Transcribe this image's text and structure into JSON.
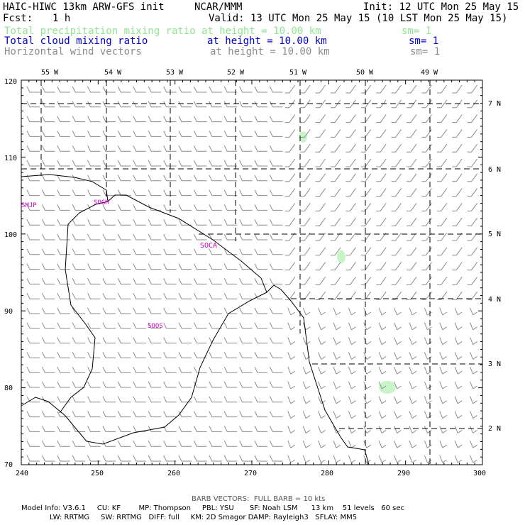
{
  "header": {
    "title": "HAIC-HIWC 13km ARW-GFS init",
    "org": "NCAR/MMM",
    "init": "Init: 12 UTC Mon 25 May 15",
    "fcst_label": "Fcst:",
    "fcst_value": "1 h",
    "valid": "Valid: 13 UTC Mon 25 May 15 (10 LST Mon 25 May 15)",
    "fields": [
      {
        "name": "Total precipitation mixing ratio",
        "height": "at height = 10.00 km",
        "sm": "sm= 1",
        "color": "#8fe58f"
      },
      {
        "name": "Total cloud mixing ratio",
        "height": "at height = 10.00 km",
        "sm": "sm= 1",
        "color": "#0000cc"
      },
      {
        "name": "Horizontal wind vectors",
        "height": "at height = 10.00 km",
        "sm": "sm= 1",
        "color": "#8c8c8c"
      }
    ]
  },
  "map": {
    "lon_labels": [
      "55 W",
      "54 W",
      "53 W",
      "52 W",
      "51 W",
      "50 W",
      "49 W"
    ],
    "lat_labels": [
      "7 N",
      "6 N",
      "5 N",
      "4 N",
      "3 N",
      "2 N"
    ],
    "x_ticks": [
      "240",
      "250",
      "260",
      "270",
      "280",
      "290",
      "300"
    ],
    "y_ticks": [
      "120",
      "110",
      "100",
      "90",
      "80",
      "70"
    ],
    "station_labels": [
      "SMJP",
      "SOGM",
      "SOCA",
      "SOOS"
    ],
    "station_color": "#cc00cc",
    "precip_color": "#c8f5c8"
  },
  "footer": {
    "barb_note": "BARB VECTORS:  FULL BARB = 10 kts",
    "model_line1": "Model Info: V3.6.1     CU: KF        MP: Thompson     PBL: YSU       SF: Noah LSM      13 km    51 levels   60 sec",
    "model_line2": "LW: RRTMG     SW: RRTMG   DIFF: full     KM: 2D Smagor DAMP: Rayleigh3   SFLAY: MM5"
  }
}
